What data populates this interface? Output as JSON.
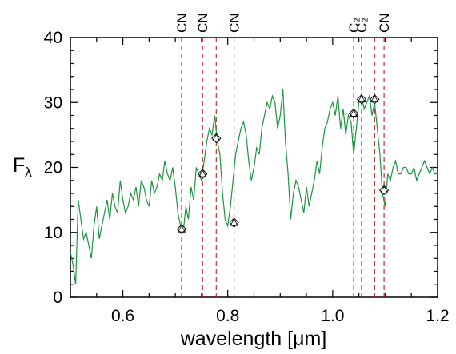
{
  "chart_data": {
    "type": "line",
    "xlabel": "wavelength [μm]",
    "ylabel": "F",
    "ylabel_subscript": "λ",
    "xlim": [
      0.5,
      1.2
    ],
    "ylim": [
      0,
      40
    ],
    "x_ticks": [
      0.6,
      0.8,
      1.0,
      1.2
    ],
    "x_tick_labels": [
      "0.6",
      "0.8",
      "1.0",
      "1.2"
    ],
    "y_ticks": [
      0,
      10,
      20,
      30,
      40
    ],
    "y_tick_labels": [
      "0",
      "10",
      "20",
      "30",
      "40"
    ],
    "grid": false,
    "spectrum_color": "#1a9641",
    "marker_line_color": "#d62728",
    "spectrum": {
      "x": [
        0.5,
        0.505,
        0.51,
        0.515,
        0.52,
        0.525,
        0.53,
        0.535,
        0.54,
        0.545,
        0.55,
        0.555,
        0.56,
        0.565,
        0.57,
        0.575,
        0.58,
        0.585,
        0.59,
        0.595,
        0.6,
        0.605,
        0.61,
        0.615,
        0.62,
        0.625,
        0.63,
        0.635,
        0.64,
        0.645,
        0.65,
        0.655,
        0.66,
        0.665,
        0.67,
        0.675,
        0.68,
        0.685,
        0.69,
        0.695,
        0.7,
        0.705,
        0.71,
        0.715,
        0.72,
        0.725,
        0.73,
        0.735,
        0.74,
        0.745,
        0.75,
        0.755,
        0.76,
        0.765,
        0.77,
        0.775,
        0.78,
        0.785,
        0.79,
        0.795,
        0.8,
        0.805,
        0.81,
        0.815,
        0.82,
        0.825,
        0.83,
        0.835,
        0.84,
        0.845,
        0.85,
        0.855,
        0.86,
        0.865,
        0.87,
        0.875,
        0.88,
        0.885,
        0.89,
        0.895,
        0.9,
        0.905,
        0.91,
        0.915,
        0.92,
        0.925,
        0.93,
        0.935,
        0.94,
        0.945,
        0.95,
        0.955,
        0.96,
        0.965,
        0.97,
        0.975,
        0.98,
        0.985,
        0.99,
        0.995,
        1.0,
        1.005,
        1.01,
        1.015,
        1.02,
        1.025,
        1.03,
        1.035,
        1.04,
        1.045,
        1.05,
        1.055,
        1.06,
        1.065,
        1.07,
        1.075,
        1.08,
        1.085,
        1.09,
        1.095,
        1.1,
        1.105,
        1.11,
        1.115,
        1.12,
        1.125,
        1.13,
        1.135,
        1.14,
        1.145,
        1.15,
        1.155,
        1.16,
        1.165,
        1.17,
        1.175,
        1.18,
        1.185,
        1.19,
        1.195,
        1.2
      ],
      "y": [
        7,
        5,
        2,
        15,
        12,
        9,
        10,
        8,
        6,
        11,
        14,
        9,
        11,
        13,
        15,
        12,
        16,
        14,
        13,
        18,
        15,
        13,
        14,
        16,
        15,
        17,
        14,
        18,
        17,
        15,
        14,
        18,
        16,
        17,
        19,
        18,
        21,
        19,
        18,
        20,
        17,
        13,
        11,
        10,
        14,
        12,
        17,
        15,
        20,
        19,
        18,
        21,
        24,
        26,
        25,
        28,
        24,
        22,
        16,
        12,
        11,
        14,
        18,
        22,
        24,
        26,
        27,
        25,
        21,
        18,
        20,
        23,
        22,
        26,
        28,
        30,
        29,
        31,
        30,
        26,
        28,
        32,
        24,
        19,
        12,
        16,
        18,
        17,
        15,
        13,
        17,
        14,
        16,
        18,
        21,
        19,
        23,
        26,
        27,
        29,
        30,
        28,
        31,
        26,
        29,
        25,
        28,
        27,
        22,
        26,
        30,
        31,
        29,
        30,
        31,
        28,
        30,
        26,
        22,
        16,
        14,
        19,
        18,
        20,
        21,
        19,
        19,
        20,
        20,
        19,
        19,
        20,
        18,
        19,
        20,
        21,
        20,
        19,
        20,
        19,
        19
      ]
    },
    "features": [
      {
        "x": 0.712,
        "label": "CN",
        "y": 10.5
      },
      {
        "x": 0.752,
        "label": "CN",
        "y": 19
      },
      {
        "x": 0.778,
        "label": "",
        "y": 24.5
      },
      {
        "x": 0.812,
        "label": "CN",
        "y": 11.5
      },
      {
        "x": 1.04,
        "label": "C₂",
        "y": 28.3
      },
      {
        "x": 1.055,
        "label": "C₂",
        "y": 30.5
      },
      {
        "x": 1.08,
        "label": "",
        "y": 30.5
      },
      {
        "x": 1.098,
        "label": "CN",
        "y": 16.5
      }
    ]
  }
}
